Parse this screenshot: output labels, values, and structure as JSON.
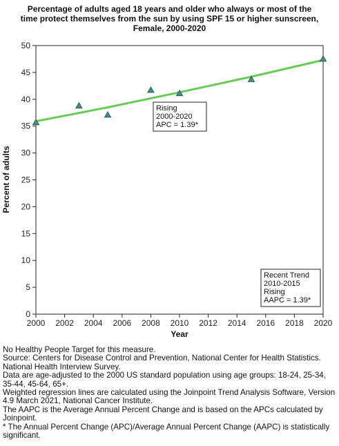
{
  "title_lines": [
    "Percentage of adults aged 18 years and older who always or most of the",
    "time protect themselves from the sun by using SPF 15 or higher sunscreen,",
    "Female,  2000-2020"
  ],
  "chart_data": {
    "type": "scatter",
    "xlabel": "Year",
    "ylabel": "Percent of adults",
    "xlim": [
      2000,
      2020
    ],
    "ylim": [
      0,
      50
    ],
    "x_ticks": [
      2000,
      2002,
      2004,
      2006,
      2008,
      2010,
      2012,
      2014,
      2016,
      2018,
      2020
    ],
    "y_ticks": [
      0,
      5,
      10,
      15,
      20,
      25,
      30,
      35,
      40,
      45,
      50
    ],
    "grid": false,
    "series": [
      {
        "marker": "triangle",
        "color": "#3f8f8a",
        "points": [
          {
            "x": 2000,
            "y": 35.7
          },
          {
            "x": 2003,
            "y": 38.8
          },
          {
            "x": 2005,
            "y": 37.1
          },
          {
            "x": 2008,
            "y": 41.7
          },
          {
            "x": 2010,
            "y": 41.1
          },
          {
            "x": 2015,
            "y": 43.7
          },
          {
            "x": 2020,
            "y": 47.5
          }
        ]
      }
    ],
    "trend_line": {
      "color": "#66cc55",
      "points": [
        {
          "x": 2000,
          "y": 35.9
        },
        {
          "x": 2005,
          "y": 38.5
        },
        {
          "x": 2010,
          "y": 41.3
        },
        {
          "x": 2015,
          "y": 44.2
        },
        {
          "x": 2020,
          "y": 47.3
        }
      ]
    },
    "annotations": [
      {
        "lines": [
          "Rising",
          "2000-2020",
          "APC =  1.39*"
        ]
      },
      {
        "lines": [
          "Recent Trend",
          "2010-2015",
          "Rising",
          "AAPC =  1.39*"
        ]
      }
    ]
  },
  "notes": [
    "No Healthy People Target for this measure.",
    "Source: Centers for Disease Control and Prevention, National Center for Health Statistics. National Health Interview Survey.",
    "Data are age-adjusted to the 2000 US standard population using age groups: 18-24, 25-34, 35-44, 45-64, 65+.",
    "Weighted regression lines are calculated using the Joinpoint Trend Analysis Software, Version 4.9 March 2021, National Cancer Institute.",
    "The AAPC is the Average Annual Percent Change and is based on the APCs calculated by Joinpoint.",
    "* The Annual Percent Change (APC)/Average Annual Percent Change (AAPC) is statistically significant."
  ]
}
